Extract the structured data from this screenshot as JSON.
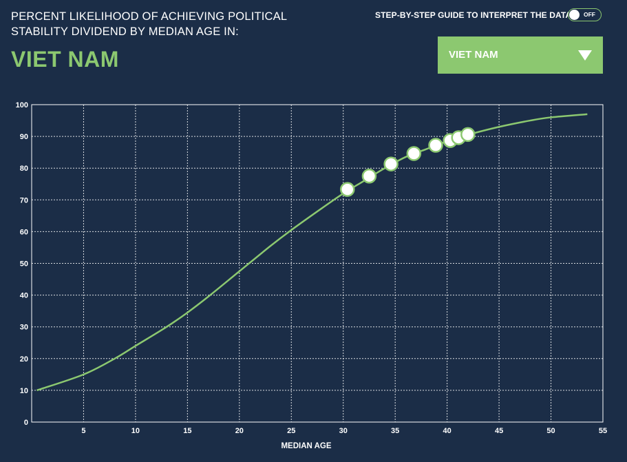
{
  "header": {
    "title_line1": "PERCENT LIKELIHOOD OF ACHIEVING POLITICAL",
    "title_line2": "STABILITY DIVIDEND BY MEDIAN AGE IN:",
    "country": "VIET NAM"
  },
  "guide": {
    "label": "STEP-BY-STEP GUIDE TO INTERPRET THE DATA",
    "toggle_state": "OFF"
  },
  "dropdown": {
    "selected": "VIET NAM"
  },
  "colors": {
    "background": "#1b2d47",
    "accent": "#8cc870",
    "grid": "#ffffff"
  },
  "chart_data": {
    "type": "line",
    "xlabel": "MEDIAN AGE",
    "ylabel": "",
    "xlim": [
      0,
      55
    ],
    "ylim": [
      0,
      100
    ],
    "xticks": [
      5,
      10,
      15,
      20,
      25,
      30,
      35,
      40,
      45,
      50,
      55
    ],
    "yticks": [
      0,
      10,
      20,
      30,
      40,
      50,
      60,
      70,
      80,
      90,
      100
    ],
    "grid": true,
    "curve": {
      "x": [
        0.5,
        5,
        8,
        10,
        13,
        15,
        17,
        20,
        23,
        25,
        28,
        30,
        32,
        34,
        36,
        38,
        40,
        42,
        45,
        48,
        50,
        53.5
      ],
      "y": [
        10,
        15,
        20,
        24,
        30,
        34.5,
        39.5,
        47.5,
        55.5,
        60.5,
        67.5,
        72,
        76,
        80,
        83.5,
        86,
        88.5,
        90.5,
        93,
        95,
        96,
        97
      ]
    },
    "markers": {
      "x": [
        30.4,
        32.5,
        34.6,
        36.8,
        38.9,
        40.3,
        41.1,
        42.0
      ],
      "y": [
        73.3,
        77.5,
        81.3,
        84.6,
        87.2,
        88.7,
        89.6,
        90.6
      ]
    }
  }
}
